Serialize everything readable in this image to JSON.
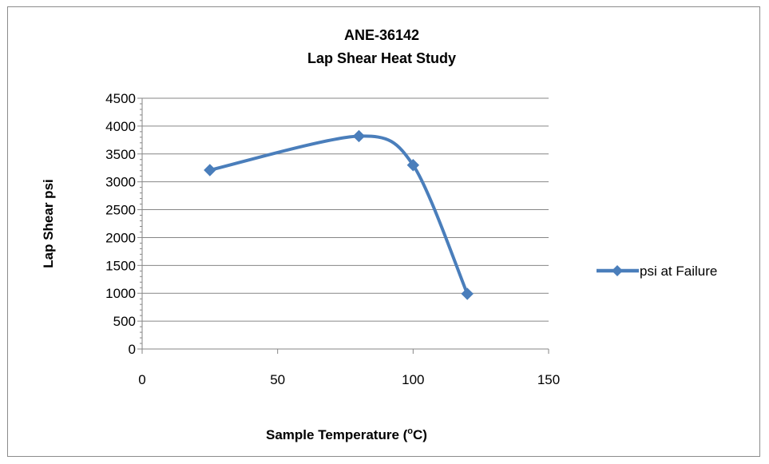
{
  "chart_data": {
    "type": "scatter",
    "title_line1": "ANE-36142",
    "title_line2": "Lap Shear Heat Study",
    "xlabel_prefix": "Sample Temperature (",
    "xlabel_sup": "o",
    "xlabel_suffix": "C)",
    "ylabel": "Lap Shear psi",
    "xlim": [
      0,
      150
    ],
    "ylim": [
      0,
      4500
    ],
    "xticks": [
      0,
      50,
      100,
      150
    ],
    "yticks": [
      0,
      500,
      1000,
      1500,
      2000,
      2500,
      3000,
      3500,
      4000,
      4500
    ],
    "grid": "horizontal",
    "smooth_line": true,
    "legend_position": "right",
    "series": [
      {
        "name": "psi at Failure",
        "color": "#4a7ebb",
        "marker": "diamond",
        "x": [
          25,
          80,
          100,
          120
        ],
        "y": [
          3210,
          3820,
          3300,
          990
        ]
      }
    ]
  }
}
